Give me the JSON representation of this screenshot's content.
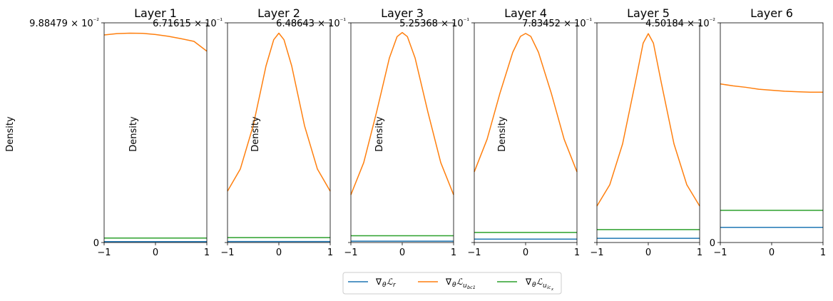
{
  "legend": {
    "placement": "bottom-center",
    "entries": [
      {
        "key": "r",
        "color": "#1f77b4"
      },
      {
        "key": "bc",
        "color": "#ff7f0e"
      },
      {
        "key": "ic",
        "color": "#2ca02c"
      }
    ]
  },
  "chart_data": [
    {
      "type": "line",
      "title": "Layer 1",
      "ylabel": "Density",
      "top_tick_label": "9.88479 × 10⁻²",
      "bottom_tick_label": "0",
      "x": [
        -1,
        -0.75,
        -0.5,
        -0.25,
        0,
        0.25,
        0.5,
        0.75,
        1
      ],
      "x_ticks": [
        "−1",
        "0",
        "1"
      ],
      "xlim": [
        -1,
        1
      ],
      "ylim": [
        0,
        0.0988479
      ],
      "grid": false,
      "series": [
        {
          "key": "r",
          "color": "#1f77b4",
          "values": [
            0.0004,
            0.0004,
            0.0004,
            0.0004,
            0.0004,
            0.0004,
            0.0004,
            0.0004,
            0.0004
          ]
        },
        {
          "key": "bc",
          "color": "#ff7f0e",
          "values": [
            0.0934,
            0.094,
            0.0942,
            0.0941,
            0.0936,
            0.0928,
            0.0917,
            0.0905,
            0.0861
          ]
        },
        {
          "key": "ic",
          "color": "#2ca02c",
          "values": [
            0.002,
            0.002,
            0.002,
            0.002,
            0.002,
            0.002,
            0.002,
            0.002,
            0.002
          ]
        }
      ]
    },
    {
      "type": "line",
      "title": "Layer 2",
      "ylabel": "Density",
      "top_tick_label": "6.71615 × 10⁻¹",
      "bottom_tick_label": "",
      "x": [
        -1,
        -0.75,
        -0.5,
        -0.25,
        -0.1,
        0,
        0.1,
        0.25,
        0.5,
        0.75,
        1
      ],
      "x_ticks": [
        "−1",
        "0",
        "1"
      ],
      "xlim": [
        -1,
        1
      ],
      "ylim": [
        0,
        0.671615
      ],
      "grid": false,
      "series": [
        {
          "key": "r",
          "color": "#1f77b4",
          "values": [
            0.003,
            0.003,
            0.003,
            0.003,
            0.003,
            0.003,
            0.003,
            0.003,
            0.003,
            0.003,
            0.003
          ]
        },
        {
          "key": "bc",
          "color": "#ff7f0e",
          "values": [
            0.157,
            0.225,
            0.357,
            0.54,
            0.62,
            0.64,
            0.62,
            0.54,
            0.357,
            0.225,
            0.157
          ]
        },
        {
          "key": "ic",
          "color": "#2ca02c",
          "values": [
            0.015,
            0.015,
            0.015,
            0.015,
            0.015,
            0.015,
            0.015,
            0.015,
            0.015,
            0.015,
            0.015
          ]
        }
      ]
    },
    {
      "type": "line",
      "title": "Layer 3",
      "ylabel": "Density",
      "top_tick_label": "6.48643 × 10⁻¹",
      "bottom_tick_label": "",
      "x": [
        -1,
        -0.75,
        -0.5,
        -0.25,
        -0.1,
        0,
        0.1,
        0.25,
        0.5,
        0.75,
        1
      ],
      "x_ticks": [
        "−1",
        "0",
        "1"
      ],
      "xlim": [
        -1,
        1
      ],
      "ylim": [
        0,
        0.648643
      ],
      "grid": false,
      "series": [
        {
          "key": "r",
          "color": "#1f77b4",
          "values": [
            0.004,
            0.004,
            0.004,
            0.004,
            0.004,
            0.004,
            0.004,
            0.004,
            0.004,
            0.004,
            0.004
          ]
        },
        {
          "key": "bc",
          "color": "#ff7f0e",
          "values": [
            0.141,
            0.236,
            0.385,
            0.545,
            0.608,
            0.62,
            0.608,
            0.545,
            0.385,
            0.236,
            0.141
          ]
        },
        {
          "key": "ic",
          "color": "#2ca02c",
          "values": [
            0.02,
            0.02,
            0.02,
            0.02,
            0.02,
            0.02,
            0.02,
            0.02,
            0.02,
            0.02,
            0.02
          ]
        }
      ]
    },
    {
      "type": "line",
      "title": "Layer 4",
      "ylabel": "Density",
      "top_tick_label": "5.25368 × 10⁻¹",
      "bottom_tick_label": "",
      "x": [
        -1,
        -0.75,
        -0.5,
        -0.25,
        -0.1,
        0,
        0.1,
        0.25,
        0.5,
        0.75,
        1
      ],
      "x_ticks": [
        "−1",
        "0",
        "1"
      ],
      "xlim": [
        -1,
        1
      ],
      "ylim": [
        0,
        0.525368
      ],
      "grid": false,
      "series": [
        {
          "key": "r",
          "color": "#1f77b4",
          "values": [
            0.008,
            0.008,
            0.008,
            0.008,
            0.008,
            0.008,
            0.008,
            0.008,
            0.008,
            0.008,
            0.008
          ]
        },
        {
          "key": "bc",
          "color": "#ff7f0e",
          "values": [
            0.169,
            0.247,
            0.357,
            0.455,
            0.493,
            0.5,
            0.493,
            0.455,
            0.357,
            0.247,
            0.169
          ]
        },
        {
          "key": "ic",
          "color": "#2ca02c",
          "values": [
            0.024,
            0.024,
            0.024,
            0.024,
            0.024,
            0.024,
            0.024,
            0.024,
            0.024,
            0.024,
            0.024
          ]
        }
      ]
    },
    {
      "type": "line",
      "title": "Layer 5",
      "ylabel": "Density",
      "top_tick_label": "7.83452 × 10⁻¹",
      "bottom_tick_label": "",
      "x": [
        -1,
        -0.75,
        -0.5,
        -0.25,
        -0.1,
        0,
        0.1,
        0.25,
        0.5,
        0.75,
        1
      ],
      "x_ticks": [
        "−1",
        "0",
        "1"
      ],
      "xlim": [
        -1,
        1
      ],
      "ylim": [
        0,
        0.783452
      ],
      "grid": false,
      "series": [
        {
          "key": "r",
          "color": "#1f77b4",
          "values": [
            0.015,
            0.015,
            0.015,
            0.015,
            0.015,
            0.015,
            0.015,
            0.015,
            0.015,
            0.015,
            0.015
          ]
        },
        {
          "key": "bc",
          "color": "#ff7f0e",
          "values": [
            0.13,
            0.206,
            0.352,
            0.573,
            0.711,
            0.745,
            0.711,
            0.573,
            0.352,
            0.206,
            0.13
          ]
        },
        {
          "key": "ic",
          "color": "#2ca02c",
          "values": [
            0.046,
            0.046,
            0.046,
            0.046,
            0.046,
            0.046,
            0.046,
            0.046,
            0.046,
            0.046,
            0.046
          ]
        }
      ]
    },
    {
      "type": "line",
      "title": "Layer 6",
      "ylabel": "",
      "top_tick_label": "4.50184 × 10⁻²",
      "bottom_tick_label": "0",
      "x": [
        -1,
        -0.75,
        -0.5,
        -0.25,
        0,
        0.25,
        0.5,
        0.75,
        1
      ],
      "x_ticks": [
        "−1",
        "0",
        "1"
      ],
      "xlim": [
        -1,
        1
      ],
      "ylim": [
        0,
        0.0450184
      ],
      "grid": false,
      "series": [
        {
          "key": "r",
          "color": "#1f77b4",
          "values": [
            0.0031,
            0.0031,
            0.0031,
            0.0031,
            0.0031,
            0.0031,
            0.0031,
            0.0031,
            0.0031
          ]
        },
        {
          "key": "bc",
          "color": "#ff7f0e",
          "values": [
            0.0325,
            0.0321,
            0.0318,
            0.0314,
            0.0312,
            0.031,
            0.0309,
            0.0308,
            0.0308
          ]
        },
        {
          "key": "ic",
          "color": "#2ca02c",
          "values": [
            0.0066,
            0.0066,
            0.0066,
            0.0066,
            0.0066,
            0.0066,
            0.0066,
            0.0066,
            0.0066
          ]
        }
      ]
    }
  ]
}
